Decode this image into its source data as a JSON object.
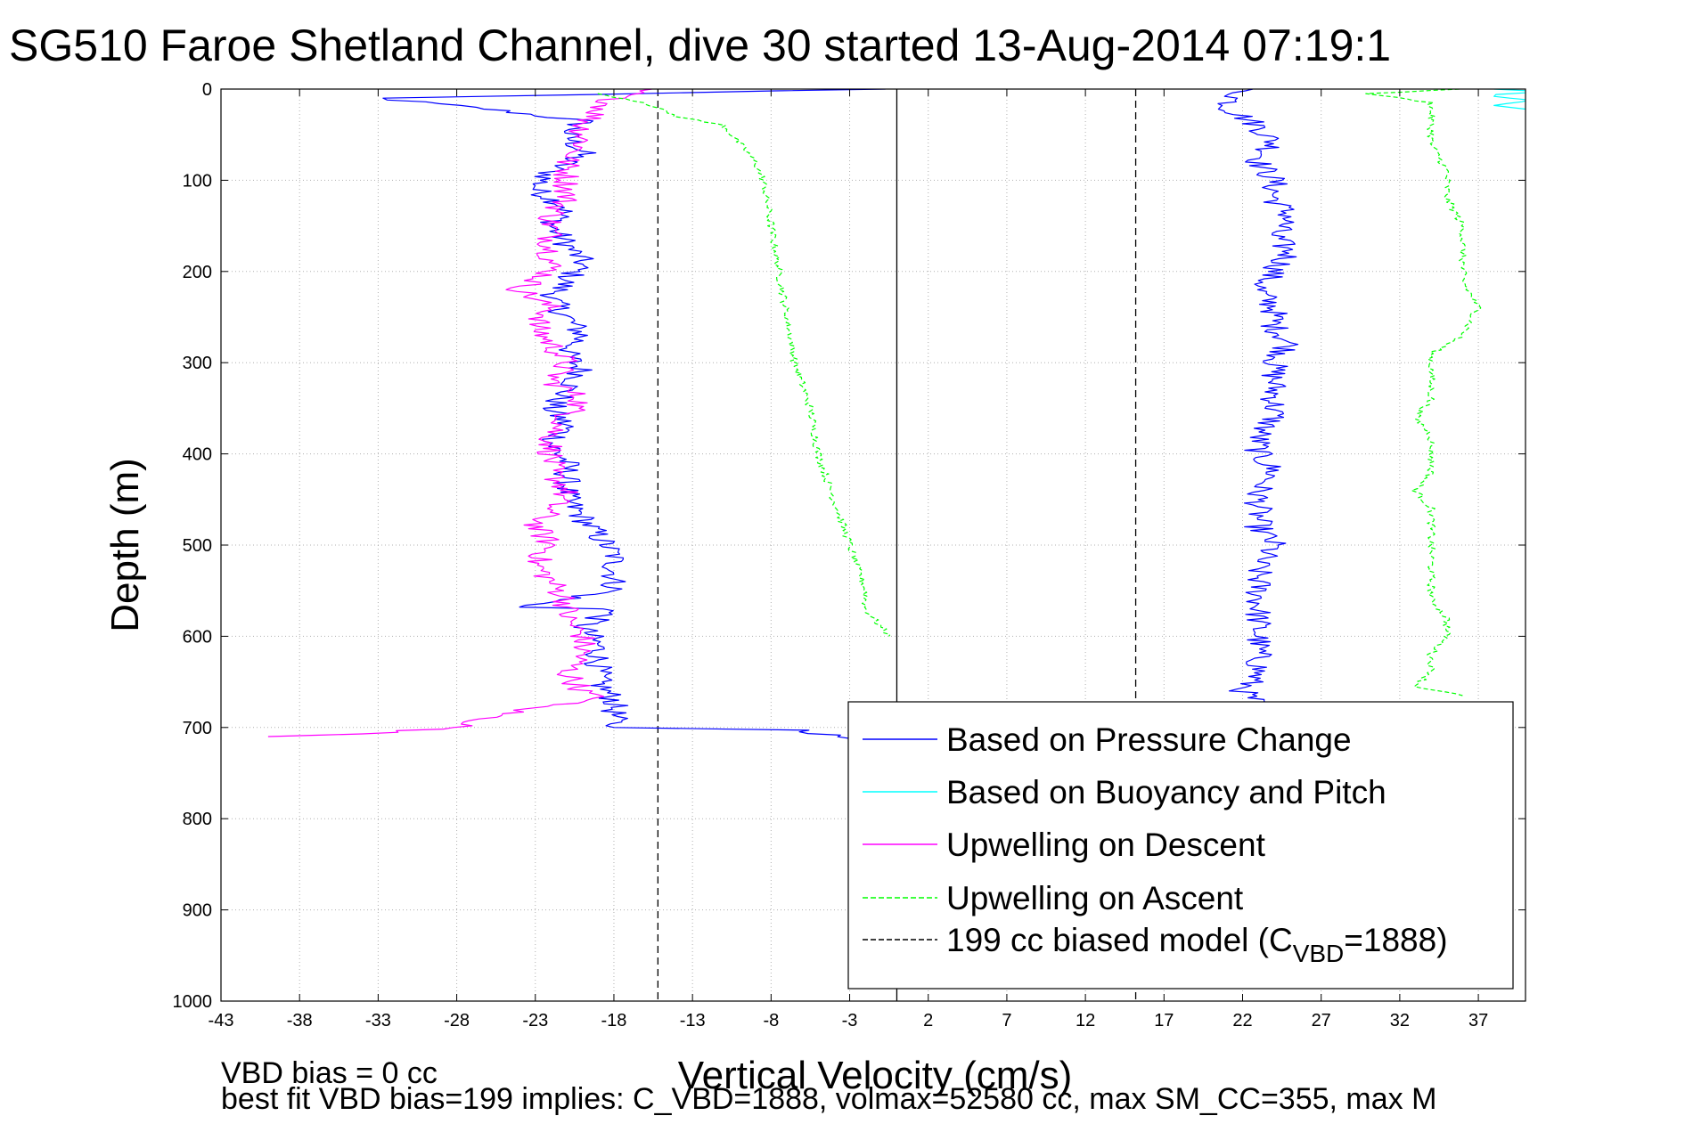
{
  "chart_data": {
    "type": "line",
    "title": "SG510 Faroe Shetland Channel, dive 30 started 13-Aug-2014 07:19:1",
    "xlabel": "Vertical Velocity (cm/s)",
    "ylabel": "Depth (m)",
    "xlim": [
      -43,
      40
    ],
    "ylim": [
      0,
      1000
    ],
    "y_reversed": true,
    "grid": true,
    "legend_placement": "bottom-right",
    "x_ticks": [
      -43,
      -38,
      -33,
      -28,
      -23,
      -18,
      -13,
      -8,
      -3,
      2,
      7,
      12,
      17,
      22,
      27,
      32,
      37
    ],
    "y_ticks": [
      0,
      100,
      200,
      300,
      400,
      500,
      600,
      700,
      800,
      900,
      1000
    ],
    "legend": {
      "items": [
        {
          "text": "Based on Pressure Change",
          "color": "#0000ff",
          "style": "solid"
        },
        {
          "text": "Based on Buoyancy and Pitch",
          "color": "#00ffff",
          "style": "solid"
        },
        {
          "text": "Upwelling on Descent",
          "color": "#ff00ff",
          "style": "solid"
        },
        {
          "text": "Upwelling on Ascent",
          "color": "#00ff00",
          "style": "dashed"
        }
      ],
      "model_prefix": "199 cc biased model (C",
      "model_sub": "VBD",
      "model_suffix": "=1888)",
      "model_color": "#000000"
    },
    "reference_lines": [
      {
        "x": -15.2,
        "style": "dashed",
        "color": "#000000"
      },
      {
        "x": 0,
        "style": "solid",
        "color": "#000000"
      },
      {
        "x": 15.2,
        "style": "dashed",
        "color": "#000000"
      }
    ],
    "series": [
      {
        "color": "#0000ff",
        "style": "solid",
        "side": "descent",
        "points": [
          [
            -1,
            0
          ],
          [
            -33,
            10
          ],
          [
            -26,
            22
          ],
          [
            -20,
            35
          ],
          [
            -21,
            50
          ],
          [
            -20,
            70
          ],
          [
            -22,
            90
          ],
          [
            -23,
            110
          ],
          [
            -21,
            130
          ],
          [
            -22,
            150
          ],
          [
            -21,
            170
          ],
          [
            -20,
            190
          ],
          [
            -21,
            210
          ],
          [
            -22,
            230
          ],
          [
            -21,
            250
          ],
          [
            -20,
            270
          ],
          [
            -21,
            290
          ],
          [
            -20,
            310
          ],
          [
            -21,
            330
          ],
          [
            -22,
            350
          ],
          [
            -21,
            370
          ],
          [
            -22,
            390
          ],
          [
            -21,
            410
          ],
          [
            -21,
            430
          ],
          [
            -21,
            450
          ],
          [
            -20,
            470
          ],
          [
            -19,
            490
          ],
          [
            -18,
            510
          ],
          [
            -18,
            530
          ],
          [
            -18,
            550
          ],
          [
            -24,
            568
          ],
          [
            -18,
            570
          ],
          [
            -20,
            590
          ],
          [
            -19,
            610
          ],
          [
            -19,
            630
          ],
          [
            -19,
            650
          ],
          [
            -18,
            670
          ],
          [
            -18,
            690
          ],
          [
            -18,
            700
          ],
          [
            -6,
            703
          ],
          [
            -3,
            712
          ]
        ]
      },
      {
        "color": "#0000ff",
        "style": "solid",
        "side": "ascent",
        "points": [
          [
            22,
            0
          ],
          [
            21,
            20
          ],
          [
            23,
            40
          ],
          [
            24,
            60
          ],
          [
            23,
            80
          ],
          [
            24,
            100
          ],
          [
            24,
            120
          ],
          [
            25,
            140
          ],
          [
            24,
            160
          ],
          [
            25,
            180
          ],
          [
            24,
            200
          ],
          [
            23,
            220
          ],
          [
            24,
            240
          ],
          [
            24,
            260
          ],
          [
            25,
            280
          ],
          [
            24,
            300
          ],
          [
            24,
            320
          ],
          [
            24,
            340
          ],
          [
            24,
            360
          ],
          [
            23,
            380
          ],
          [
            23,
            400
          ],
          [
            24,
            420
          ],
          [
            23,
            440
          ],
          [
            23,
            460
          ],
          [
            23,
            480
          ],
          [
            24,
            500
          ],
          [
            23,
            520
          ],
          [
            23,
            540
          ],
          [
            23,
            560
          ],
          [
            23,
            580
          ],
          [
            23,
            600
          ],
          [
            23,
            620
          ],
          [
            23,
            640
          ],
          [
            22,
            660
          ],
          [
            23,
            675
          ]
        ]
      },
      {
        "color": "#ff00ff",
        "style": "solid",
        "side": "descent",
        "points": [
          [
            -16,
            0
          ],
          [
            -18,
            10
          ],
          [
            -20,
            40
          ],
          [
            -20,
            60
          ],
          [
            -21,
            80
          ],
          [
            -21,
            100
          ],
          [
            -21,
            120
          ],
          [
            -22,
            140
          ],
          [
            -22,
            160
          ],
          [
            -22,
            180
          ],
          [
            -22,
            200
          ],
          [
            -24,
            220
          ],
          [
            -22,
            240
          ],
          [
            -23,
            260
          ],
          [
            -22,
            280
          ],
          [
            -21,
            300
          ],
          [
            -22,
            320
          ],
          [
            -20,
            340
          ],
          [
            -21,
            360
          ],
          [
            -22,
            380
          ],
          [
            -22,
            400
          ],
          [
            -22,
            420
          ],
          [
            -21,
            440
          ],
          [
            -22,
            460
          ],
          [
            -23,
            480
          ],
          [
            -22,
            500
          ],
          [
            -23,
            520
          ],
          [
            -22,
            540
          ],
          [
            -21,
            560
          ],
          [
            -21,
            580
          ],
          [
            -20,
            600
          ],
          [
            -20,
            620
          ],
          [
            -21,
            640
          ],
          [
            -20,
            660
          ],
          [
            -19,
            670
          ],
          [
            -22,
            675
          ],
          [
            -25,
            685
          ],
          [
            -28,
            700
          ],
          [
            -34,
            707
          ],
          [
            -40,
            710
          ]
        ]
      },
      {
        "color": "#00ff00",
        "style": "dashed",
        "side": "descent",
        "points": [
          [
            -19,
            5
          ],
          [
            -16,
            15
          ],
          [
            -14,
            30
          ],
          [
            -11,
            40
          ],
          [
            -10,
            60
          ],
          [
            -9,
            80
          ],
          [
            -8.5,
            100
          ],
          [
            -8,
            150
          ],
          [
            -7.5,
            200
          ],
          [
            -7,
            250
          ],
          [
            -6.5,
            300
          ],
          [
            -5.5,
            350
          ],
          [
            -5,
            400
          ],
          [
            -4,
            450
          ],
          [
            -3,
            500
          ],
          [
            -2,
            550
          ],
          [
            -2,
            570
          ],
          [
            -1,
            590
          ],
          [
            -0.5,
            600
          ]
        ]
      },
      {
        "color": "#00ff00",
        "style": "dashed",
        "side": "ascent",
        "points": [
          [
            36,
            0
          ],
          [
            30,
            5
          ],
          [
            34,
            15
          ],
          [
            34,
            30
          ],
          [
            34,
            60
          ],
          [
            35,
            90
          ],
          [
            35,
            120
          ],
          [
            36,
            150
          ],
          [
            36,
            180
          ],
          [
            36,
            210
          ],
          [
            37,
            240
          ],
          [
            36,
            270
          ],
          [
            34,
            290
          ],
          [
            34,
            310
          ],
          [
            34,
            340
          ],
          [
            33,
            360
          ],
          [
            34,
            380
          ],
          [
            34,
            400
          ],
          [
            34,
            420
          ],
          [
            33,
            440
          ],
          [
            34,
            460
          ],
          [
            34,
            480
          ],
          [
            34,
            500
          ],
          [
            34,
            520
          ],
          [
            34,
            540
          ],
          [
            34,
            560
          ],
          [
            35,
            580
          ],
          [
            35,
            600
          ],
          [
            34,
            620
          ],
          [
            34,
            640
          ],
          [
            33,
            655
          ],
          [
            36,
            665
          ]
        ]
      },
      {
        "color": "#00ffff",
        "style": "solid",
        "side": "ascent",
        "points": [
          [
            38,
            0
          ],
          [
            40,
            2
          ],
          [
            38,
            8
          ],
          [
            40,
            12
          ],
          [
            38,
            18
          ],
          [
            40,
            22
          ]
        ]
      }
    ]
  }
}
